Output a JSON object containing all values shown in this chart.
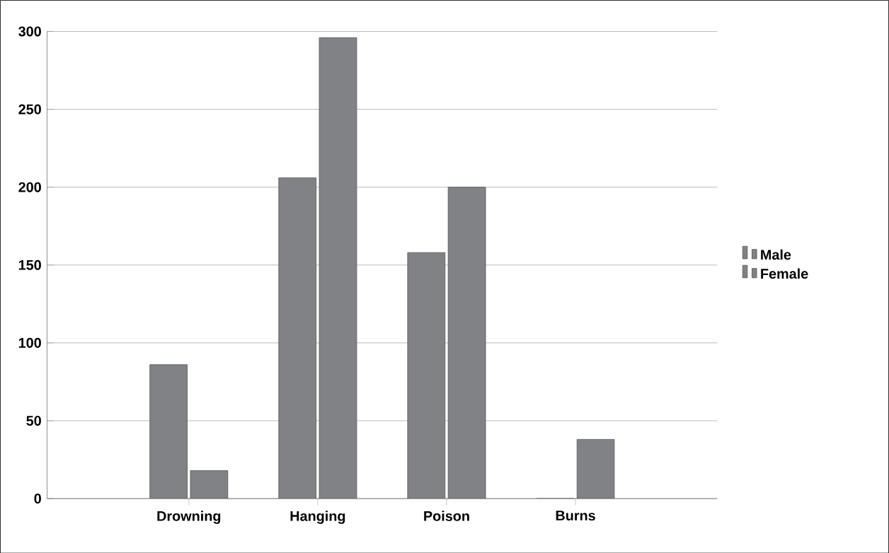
{
  "chart_data": {
    "type": "bar",
    "categories": [
      "Drowning",
      "Hanging",
      "Poison",
      "Burns"
    ],
    "series": [
      {
        "name": "Male",
        "color": "#808285",
        "values": [
          86,
          206,
          158,
          0
        ]
      },
      {
        "name": "Female",
        "color": "#808285",
        "values": [
          18,
          296,
          200,
          38
        ]
      }
    ],
    "ylim": [
      0,
      300
    ],
    "yticks": [
      0,
      50,
      100,
      150,
      200,
      250,
      300
    ],
    "grid": "y",
    "legend": "right"
  }
}
